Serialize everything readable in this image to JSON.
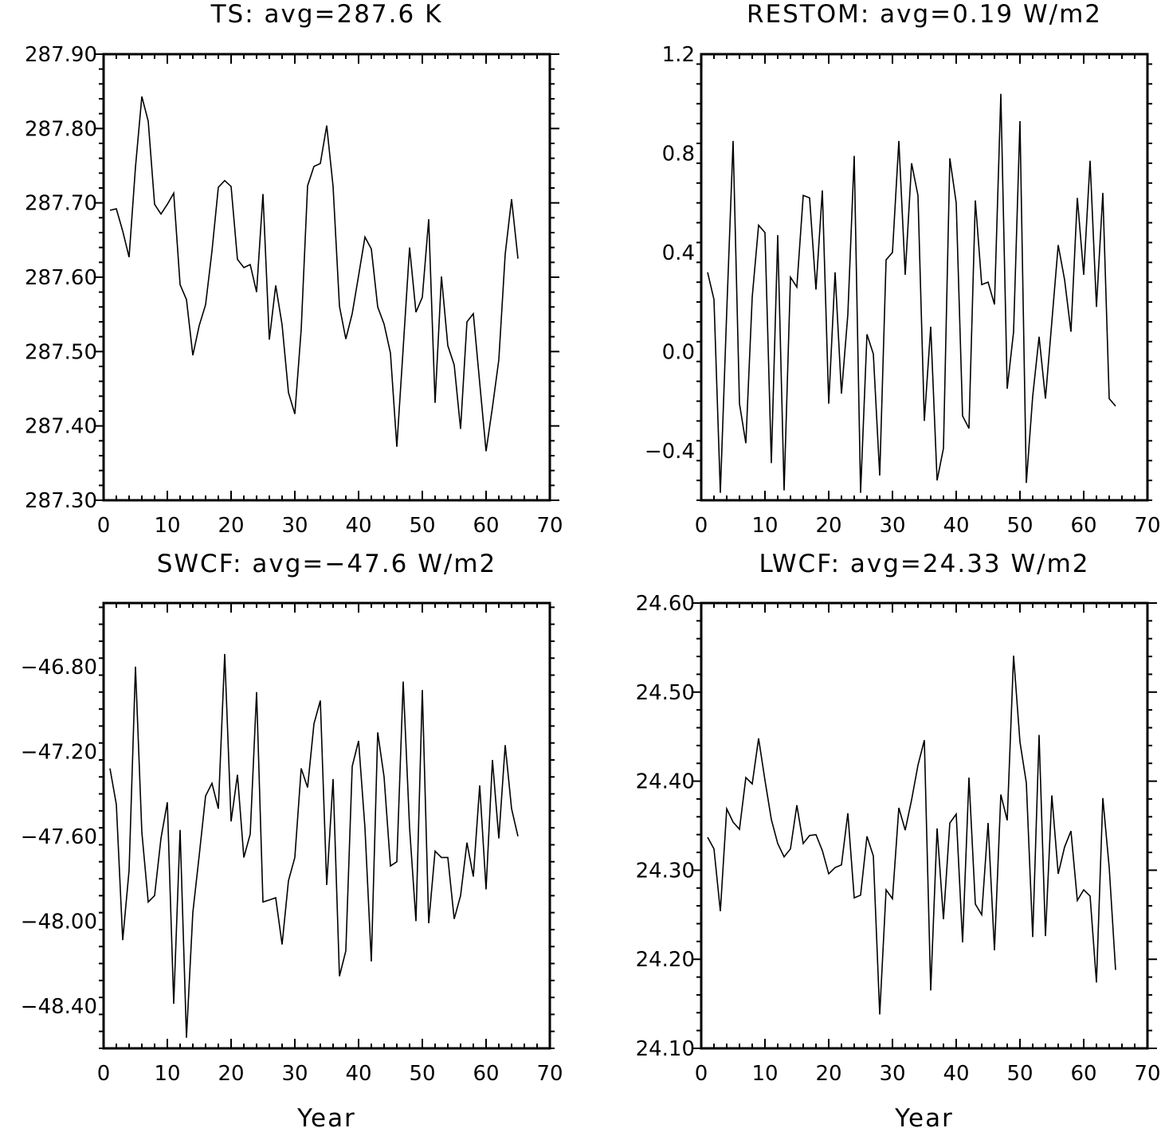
{
  "chart_data": [
    {
      "type": "line",
      "title": "TS: avg=287.6 K",
      "xlabel": "",
      "xlim": [
        0,
        70
      ],
      "ylim": [
        287.3,
        287.9
      ],
      "xticks": [
        "0",
        "10",
        "20",
        "30",
        "40",
        "50",
        "60",
        "70"
      ],
      "yticks": [
        "287.30",
        "287.40",
        "287.50",
        "287.60",
        "287.70",
        "287.80",
        "287.90"
      ],
      "x": [
        1,
        2,
        3,
        4,
        5,
        6,
        7,
        8,
        9,
        10,
        11,
        12,
        13,
        14,
        15,
        16,
        17,
        18,
        19,
        20,
        21,
        22,
        23,
        24,
        25,
        26,
        27,
        28,
        29,
        30,
        31,
        32,
        33,
        34,
        35,
        36,
        37,
        38,
        39,
        40,
        41,
        42,
        43,
        44,
        45,
        46,
        47,
        48,
        49,
        50,
        51,
        52,
        53,
        54,
        55,
        56,
        57,
        58,
        59,
        60,
        61,
        62,
        63,
        64,
        65
      ],
      "values": [
        287.69,
        287.692,
        287.662,
        287.627,
        287.748,
        287.843,
        287.81,
        287.698,
        287.685,
        287.698,
        287.713,
        287.59,
        287.57,
        287.495,
        287.535,
        287.563,
        287.635,
        287.721,
        287.73,
        287.722,
        287.624,
        287.613,
        287.617,
        287.58,
        287.712,
        287.516,
        287.589,
        287.536,
        287.445,
        287.416,
        287.53,
        287.723,
        287.749,
        287.753,
        287.804,
        287.722,
        287.561,
        287.517,
        287.551,
        287.602,
        287.654,
        287.638,
        287.56,
        287.537,
        287.498,
        287.372,
        287.505,
        287.64,
        287.553,
        287.573,
        287.678,
        287.431,
        287.601,
        287.508,
        287.482,
        287.396,
        287.54,
        287.551,
        287.458,
        287.366,
        287.425,
        287.489,
        287.631,
        287.705,
        287.625
      ]
    },
    {
      "type": "line",
      "title": "RESTOM: avg=0.19 W/m2",
      "xlabel": "",
      "xlim": [
        0,
        70
      ],
      "ylim": [
        -0.6,
        1.2
      ],
      "xticks": [
        "0",
        "10",
        "20",
        "30",
        "40",
        "50",
        "60",
        "70"
      ],
      "yticks": [
        "−0.4",
        "0.0",
        "0.4",
        "0.8",
        "1.2"
      ],
      "ytick_values": [
        -0.4,
        0.0,
        0.4,
        0.8,
        1.2
      ],
      "x": [
        1,
        2,
        3,
        4,
        5,
        6,
        7,
        8,
        9,
        10,
        11,
        12,
        13,
        14,
        15,
        16,
        17,
        18,
        19,
        20,
        21,
        22,
        23,
        24,
        25,
        26,
        27,
        28,
        29,
        30,
        31,
        32,
        33,
        34,
        35,
        36,
        37,
        38,
        39,
        40,
        41,
        42,
        43,
        44,
        45,
        46,
        47,
        48,
        49,
        50,
        51,
        52,
        53,
        54,
        55,
        56,
        57,
        58,
        59,
        60,
        61,
        62,
        63,
        64,
        65
      ],
      "values": [
        0.32,
        0.21,
        -0.57,
        0.16,
        0.85,
        -0.21,
        -0.37,
        0.22,
        0.51,
        0.48,
        -0.45,
        0.47,
        -0.56,
        0.3,
        0.26,
        0.63,
        0.62,
        0.25,
        0.65,
        -0.21,
        0.32,
        -0.17,
        0.15,
        0.79,
        -0.57,
        0.07,
        -0.01,
        -0.5,
        0.37,
        0.4,
        0.85,
        0.31,
        0.76,
        0.63,
        -0.28,
        0.1,
        -0.52,
        -0.39,
        0.78,
        0.6,
        -0.26,
        -0.31,
        0.61,
        0.27,
        0.28,
        0.19,
        1.04,
        -0.15,
        0.08,
        0.93,
        -0.53,
        -0.18,
        0.06,
        -0.19,
        0.12,
        0.43,
        0.29,
        0.08,
        0.62,
        0.31,
        0.77,
        0.18,
        0.64,
        -0.19,
        -0.22
      ]
    },
    {
      "type": "line",
      "title": "SWCF: avg=−47.6 W/m2",
      "xlabel": "Year",
      "xlim": [
        0,
        70
      ],
      "ylim": [
        -48.6,
        -46.5
      ],
      "xticks": [
        "0",
        "10",
        "20",
        "30",
        "40",
        "50",
        "60",
        "70"
      ],
      "yticks": [
        "−48.40",
        "−48.00",
        "−47.60",
        "−47.20",
        "−46.80"
      ],
      "ytick_values": [
        -48.4,
        -48.0,
        -47.6,
        -47.2,
        -46.8
      ],
      "x": [
        1,
        2,
        3,
        4,
        5,
        6,
        7,
        8,
        9,
        10,
        11,
        12,
        13,
        14,
        15,
        16,
        17,
        18,
        19,
        20,
        21,
        22,
        23,
        24,
        25,
        26,
        27,
        28,
        29,
        30,
        31,
        32,
        33,
        34,
        35,
        36,
        37,
        38,
        39,
        40,
        41,
        42,
        43,
        44,
        45,
        46,
        47,
        48,
        49,
        50,
        51,
        52,
        53,
        54,
        55,
        56,
        57,
        58,
        59,
        60,
        61,
        62,
        63,
        64,
        65
      ],
      "values": [
        -47.28,
        -47.45,
        -48.09,
        -47.76,
        -46.8,
        -47.58,
        -47.91,
        -47.88,
        -47.61,
        -47.44,
        -48.39,
        -47.57,
        -48.55,
        -47.96,
        -47.69,
        -47.41,
        -47.35,
        -47.47,
        -46.74,
        -47.53,
        -47.31,
        -47.7,
        -47.59,
        -46.92,
        -47.91,
        -47.9,
        -47.89,
        -48.11,
        -47.81,
        -47.7,
        -47.28,
        -47.37,
        -47.07,
        -46.96,
        -47.83,
        -47.33,
        -48.26,
        -48.14,
        -47.27,
        -47.15,
        -47.56,
        -48.19,
        -47.11,
        -47.32,
        -47.74,
        -47.72,
        -46.87,
        -47.56,
        -48.0,
        -46.91,
        -48.01,
        -47.67,
        -47.7,
        -47.7,
        -47.99,
        -47.88,
        -47.63,
        -47.79,
        -47.36,
        -47.85,
        -47.24,
        -47.61,
        -47.17,
        -47.47,
        -47.6
      ]
    },
    {
      "type": "line",
      "title": "LWCF: avg=24.33 W/m2",
      "xlabel": "Year",
      "xlim": [
        0,
        70
      ],
      "ylim": [
        24.1,
        24.6
      ],
      "xticks": [
        "0",
        "10",
        "20",
        "30",
        "40",
        "50",
        "60",
        "70"
      ],
      "yticks": [
        "24.10",
        "24.20",
        "24.30",
        "24.40",
        "24.50",
        "24.60"
      ],
      "x": [
        1,
        2,
        3,
        4,
        5,
        6,
        7,
        8,
        9,
        10,
        11,
        12,
        13,
        14,
        15,
        16,
        17,
        18,
        19,
        20,
        21,
        22,
        23,
        24,
        25,
        26,
        27,
        28,
        29,
        30,
        31,
        32,
        33,
        34,
        35,
        36,
        37,
        38,
        39,
        40,
        41,
        42,
        43,
        44,
        45,
        46,
        47,
        48,
        49,
        50,
        51,
        52,
        53,
        54,
        55,
        56,
        57,
        58,
        59,
        60,
        61,
        62,
        63,
        64,
        65
      ],
      "values": [
        24.337,
        24.324,
        24.254,
        24.369,
        24.354,
        24.346,
        24.404,
        24.397,
        24.448,
        24.401,
        24.357,
        24.33,
        24.315,
        24.324,
        24.373,
        24.33,
        24.339,
        24.34,
        24.322,
        24.296,
        24.303,
        24.306,
        24.364,
        24.269,
        24.272,
        24.338,
        24.316,
        24.138,
        24.278,
        24.268,
        24.37,
        24.345,
        24.379,
        24.418,
        24.446,
        24.165,
        24.347,
        24.245,
        24.353,
        24.363,
        24.219,
        24.404,
        24.262,
        24.25,
        24.353,
        24.21,
        24.385,
        24.356,
        24.541,
        24.444,
        24.398,
        24.225,
        24.452,
        24.226,
        24.384,
        24.296,
        24.326,
        24.344,
        24.266,
        24.278,
        24.271,
        24.174,
        24.381,
        24.303,
        24.188
      ]
    }
  ]
}
